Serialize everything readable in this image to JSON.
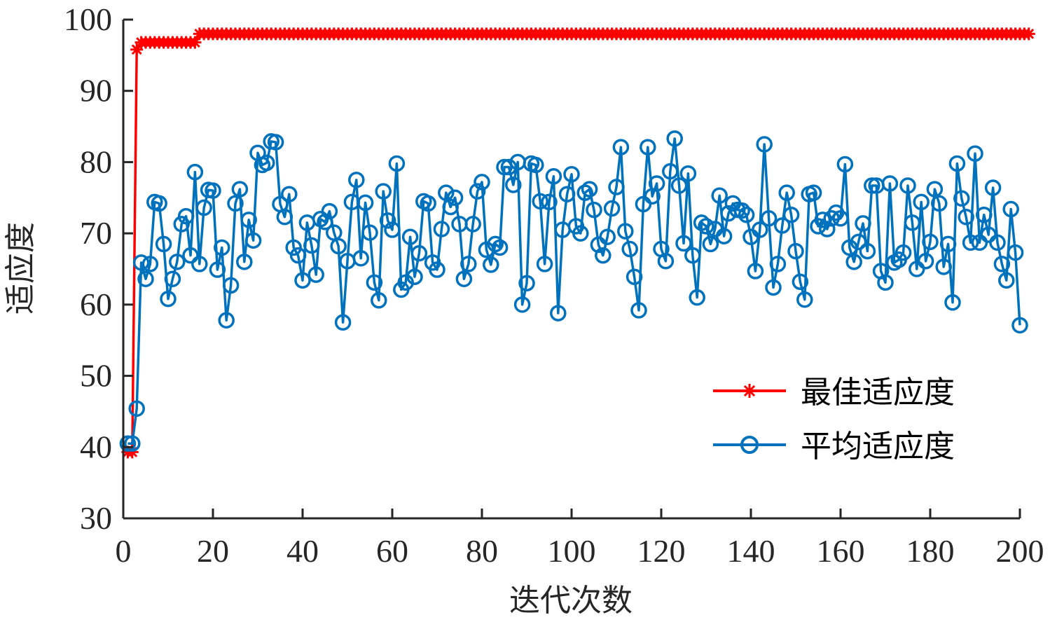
{
  "chart_data": {
    "type": "line",
    "title": "",
    "xlabel": "迭代次数",
    "ylabel": "适应度",
    "xlim": [
      0,
      200
    ],
    "ylim": [
      30,
      100
    ],
    "xticks": [
      0,
      20,
      40,
      60,
      80,
      100,
      120,
      140,
      160,
      180,
      200
    ],
    "yticks": [
      30,
      40,
      50,
      60,
      70,
      80,
      90,
      100
    ],
    "grid": false,
    "legend_position": "lower right (inside)",
    "series": [
      {
        "name": "最佳适应度",
        "color": "#ff0000",
        "marker": "asterisk",
        "x_range": [
          1,
          200
        ],
        "values": [
          39.3,
          39.3,
          95.8,
          96.8,
          96.8,
          96.8,
          96.8,
          96.8,
          96.8,
          96.8,
          96.8,
          96.8,
          96.8,
          96.8,
          96.8,
          96.8,
          98.0,
          98.0,
          98.0,
          98.0,
          98.0,
          98.0,
          98.0,
          98.0,
          98.0,
          98.0,
          98.0,
          98.0,
          98.0,
          98.0,
          98.0,
          98.0,
          98.0,
          98.0,
          98.0,
          98.0,
          98.0,
          98.0,
          98.0,
          98.0,
          98.0,
          98.0,
          98.0,
          98.0,
          98.0,
          98.0,
          98.0,
          98.0,
          98.0,
          98.0,
          98.0,
          98.0,
          98.0,
          98.0,
          98.0,
          98.0,
          98.0,
          98.0,
          98.0,
          98.0,
          98.0,
          98.0,
          98.0,
          98.0,
          98.0,
          98.0,
          98.0,
          98.0,
          98.0,
          98.0,
          98.0,
          98.0,
          98.0,
          98.0,
          98.0,
          98.0,
          98.0,
          98.0,
          98.0,
          98.0,
          98.0,
          98.0,
          98.0,
          98.0,
          98.0,
          98.0,
          98.0,
          98.0,
          98.0,
          98.0,
          98.0,
          98.0,
          98.0,
          98.0,
          98.0,
          98.0,
          98.0,
          98.0,
          98.0,
          98.0,
          98.0,
          98.0,
          98.0,
          98.0,
          98.0,
          98.0,
          98.0,
          98.0,
          98.0,
          98.0,
          98.0,
          98.0,
          98.0,
          98.0,
          98.0,
          98.0,
          98.0,
          98.0,
          98.0,
          98.0,
          98.0,
          98.0,
          98.0,
          98.0,
          98.0,
          98.0,
          98.0,
          98.0,
          98.0,
          98.0,
          98.0,
          98.0,
          98.0,
          98.0,
          98.0,
          98.0,
          98.0,
          98.0,
          98.0,
          98.0,
          98.0,
          98.0,
          98.0,
          98.0,
          98.0,
          98.0,
          98.0,
          98.0,
          98.0,
          98.0,
          98.0,
          98.0,
          98.0,
          98.0,
          98.0,
          98.0,
          98.0,
          98.0,
          98.0,
          98.0,
          98.0,
          98.0,
          98.0,
          98.0,
          98.0,
          98.0,
          98.0,
          98.0,
          98.0,
          98.0,
          98.0,
          98.0,
          98.0,
          98.0,
          98.0,
          98.0,
          98.0,
          98.0,
          98.0,
          98.0,
          98.0,
          98.0,
          98.0,
          98.0,
          98.0,
          98.0,
          98.0,
          98.0,
          98.0,
          98.0,
          98.0,
          98.0,
          98.0,
          98.0,
          98.0,
          98.0,
          98.0,
          98.0,
          98.0,
          98.0,
          98.0,
          98.0
        ]
      },
      {
        "name": "平均适应度",
        "color": "#0072bd",
        "marker": "circle",
        "x_range": [
          1,
          200
        ],
        "values": [
          40.5,
          40.5,
          45.4,
          65.9,
          63.6,
          65.7,
          74.4,
          74.2,
          68.5,
          60.8,
          63.6,
          66.0,
          71.3,
          72.4,
          66.9,
          78.6,
          65.7,
          73.6,
          76.1,
          76.0,
          64.9,
          68.0,
          57.8,
          62.7,
          74.2,
          76.2,
          66.0,
          71.9,
          69.0,
          81.3,
          79.6,
          79.9,
          82.9,
          82.8,
          74.1,
          72.3,
          75.5,
          68.0,
          66.9,
          63.4,
          71.5,
          68.3,
          64.2,
          72.0,
          71.6,
          73.1,
          70.1,
          68.2,
          57.5,
          66.1,
          74.4,
          77.5,
          66.5,
          74.3,
          70.1,
          63.1,
          60.6,
          75.9,
          71.8,
          70.5,
          79.8,
          62.1,
          63.1,
          69.5,
          63.9,
          67.2,
          74.5,
          74.2,
          65.9,
          64.9,
          70.6,
          75.7,
          73.7,
          75.0,
          71.3,
          63.6,
          65.7,
          71.3,
          75.9,
          77.2,
          67.7,
          65.6,
          68.5,
          68.0,
          79.3,
          79.3,
          76.8,
          80.0,
          60.0,
          63.0,
          79.8,
          79.6,
          74.5,
          65.7,
          74.4,
          78.0,
          58.8,
          70.5,
          75.5,
          78.3,
          71.0,
          70.0,
          75.7,
          76.2,
          73.3,
          68.4,
          66.9,
          69.5,
          73.5,
          76.5,
          82.1,
          70.3,
          67.8,
          63.9,
          59.2,
          74.1,
          82.1,
          75.2,
          77.0,
          67.8,
          66.1,
          78.7,
          83.3,
          76.7,
          68.6,
          78.4,
          66.9,
          61.0,
          71.5,
          71.0,
          68.5,
          70.6,
          75.3,
          69.6,
          72.8,
          74.2,
          73.3,
          73.2,
          72.6,
          69.5,
          64.7,
          70.5,
          82.5,
          72.1,
          62.4,
          65.7,
          71.1,
          75.7,
          72.6,
          67.5,
          63.2,
          60.7,
          75.5,
          75.7,
          71.0,
          71.9,
          70.6,
          72.1,
          72.9,
          72.1,
          79.7,
          68.0,
          66.0,
          68.8,
          71.4,
          67.5,
          76.7,
          76.7,
          64.7,
          63.1,
          77.0,
          65.9,
          66.3,
          67.3,
          76.7,
          71.5,
          65.0,
          74.4,
          66.1,
          68.8,
          76.2,
          74.2,
          65.3,
          68.5,
          60.3,
          79.8,
          74.9,
          72.3,
          68.7,
          81.2,
          68.7,
          72.6,
          69.8,
          76.4,
          68.7,
          65.7,
          63.4,
          73.4,
          67.3,
          57.1
        ]
      }
    ]
  }
}
